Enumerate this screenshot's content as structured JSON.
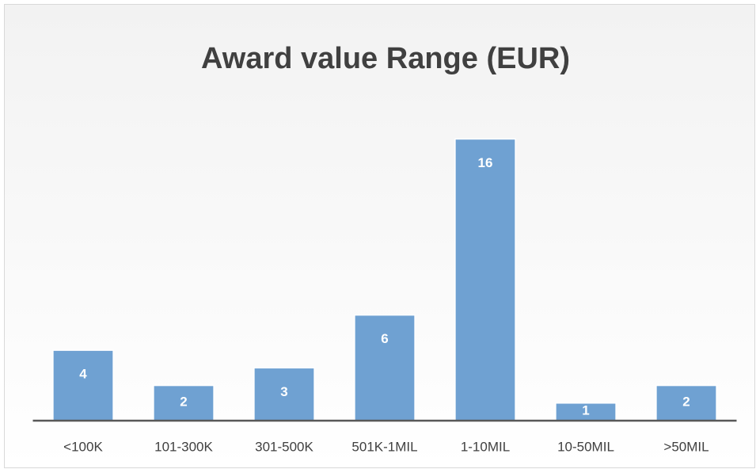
{
  "chart_data": {
    "type": "bar",
    "title": "Award value Range (EUR)",
    "categories": [
      "<100K",
      "101-300K",
      "301-500K",
      "501K-1MIL",
      "1-10MIL",
      "10-50MIL",
      ">50MIL"
    ],
    "values": [
      4,
      2,
      3,
      6,
      16,
      1,
      2
    ],
    "color": "#6fa1d2",
    "ylim": [
      0,
      18
    ]
  }
}
